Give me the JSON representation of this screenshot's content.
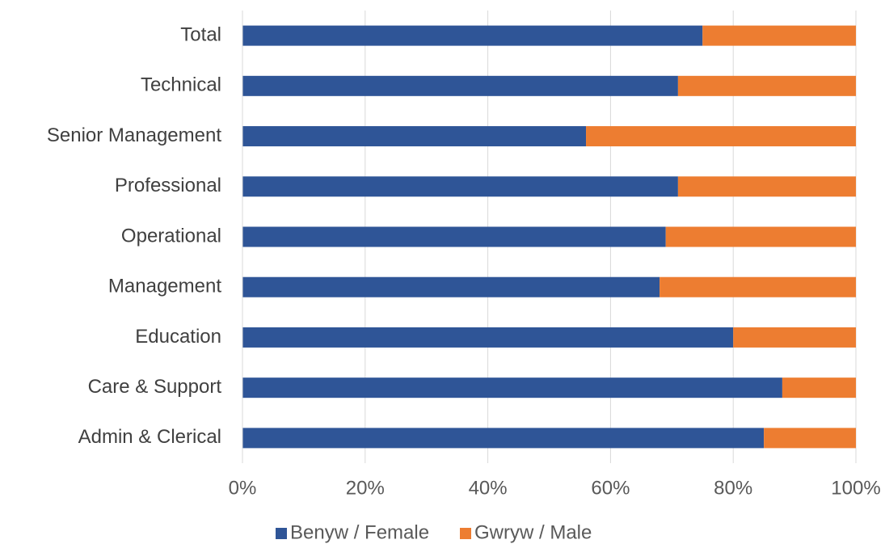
{
  "chart_data": {
    "type": "stacked_bar_horizontal",
    "categories": [
      "Total",
      "Technical",
      "Senior Management",
      "Professional",
      "Operational",
      "Management",
      "Education",
      "Care & Support",
      "Admin & Clerical"
    ],
    "series": [
      {
        "name": "Benyw / Female",
        "color": "#2f5597",
        "values": [
          75,
          71,
          56,
          71,
          69,
          68,
          80,
          88,
          85
        ]
      },
      {
        "name": "Gwryw / Male",
        "color": "#ed7d31",
        "values": [
          25,
          29,
          44,
          29,
          31,
          32,
          20,
          12,
          15
        ]
      }
    ],
    "xlim": [
      0,
      100
    ],
    "xticks": [
      {
        "value": 0,
        "label": "0%"
      },
      {
        "value": 20,
        "label": "20%"
      },
      {
        "value": 40,
        "label": "40%"
      },
      {
        "value": 60,
        "label": "60%"
      },
      {
        "value": 80,
        "label": "80%"
      },
      {
        "value": 100,
        "label": "100%"
      }
    ],
    "grid": true,
    "legend": "bottom"
  }
}
